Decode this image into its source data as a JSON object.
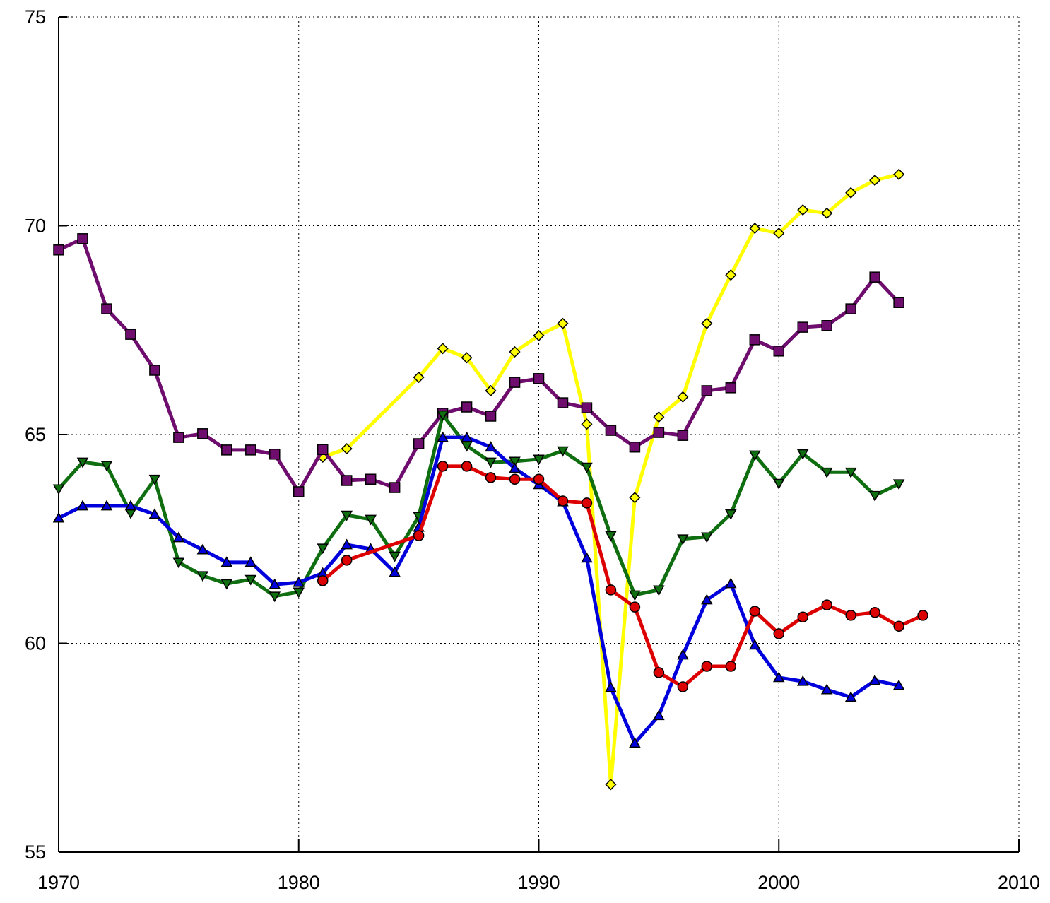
{
  "chart_data": {
    "type": "line",
    "grid": true,
    "xlim": [
      1970,
      2010
    ],
    "xticks": [
      1970,
      1980,
      1990,
      2000,
      2010
    ],
    "ylim": [
      55,
      75
    ],
    "yticks": [
      55,
      60,
      65,
      70,
      75
    ],
    "series": [
      {
        "color": "#ffff00",
        "marker": "diamond",
        "x": [
          1981,
          1982,
          1985,
          1986,
          1987,
          1988,
          1989,
          1990,
          1991,
          1992,
          1993,
          1994,
          1995,
          1996,
          1997,
          1998,
          1999,
          2000,
          2001,
          2002,
          2003,
          2004,
          2005
        ],
        "values": [
          64.46,
          64.66,
          66.37,
          67.06,
          66.84,
          66.05,
          66.98,
          67.37,
          67.66,
          65.25,
          56.62,
          63.49,
          65.42,
          65.9,
          67.66,
          68.82,
          69.94,
          69.82,
          70.38,
          70.3,
          70.79,
          71.09,
          71.23
        ]
      },
      {
        "color": "#6e0d6e",
        "marker": "square",
        "x": [
          1970,
          1971,
          1972,
          1973,
          1974,
          1975,
          1976,
          1977,
          1978,
          1979,
          1980,
          1981,
          1982,
          1983,
          1984,
          1985,
          1986,
          1987,
          1988,
          1989,
          1990,
          1991,
          1992,
          1993,
          1994,
          1995,
          1996,
          1997,
          1998,
          1999,
          2000,
          2001,
          2002,
          2003,
          2004,
          2005
        ],
        "values": [
          69.42,
          69.69,
          68.01,
          67.4,
          66.54,
          64.93,
          65.02,
          64.63,
          64.63,
          64.53,
          63.63,
          64.64,
          63.9,
          63.93,
          63.73,
          64.78,
          65.51,
          65.66,
          65.44,
          66.25,
          66.34,
          65.76,
          65.64,
          65.1,
          64.7,
          65.05,
          64.98,
          66.05,
          66.12,
          67.27,
          67.0,
          67.57,
          67.61,
          68.01,
          68.77,
          68.16
        ]
      },
      {
        "color": "#0f6e0f",
        "marker": "triangle-down",
        "x": [
          1970,
          1971,
          1972,
          1973,
          1974,
          1975,
          1976,
          1977,
          1978,
          1979,
          1980,
          1981,
          1982,
          1983,
          1984,
          1985,
          1986,
          1987,
          1988,
          1989,
          1990,
          1991,
          1992,
          1993,
          1994,
          1995,
          1996,
          1997,
          1998,
          1999,
          2000,
          2001,
          2002,
          2003,
          2004,
          2005
        ],
        "values": [
          63.7,
          64.34,
          64.26,
          63.12,
          63.93,
          61.94,
          61.62,
          61.43,
          61.53,
          61.13,
          61.23,
          62.28,
          63.07,
          62.97,
          62.09,
          63.04,
          65.47,
          64.73,
          64.34,
          64.36,
          64.41,
          64.61,
          64.22,
          62.58,
          61.16,
          61.28,
          62.5,
          62.55,
          63.1,
          64.51,
          63.83,
          64.54,
          64.1,
          64.1,
          63.54,
          63.82
        ]
      },
      {
        "color": "#0000dd",
        "marker": "triangle-up",
        "x": [
          1970,
          1971,
          1972,
          1973,
          1974,
          1975,
          1976,
          1977,
          1978,
          1979,
          1980,
          1981,
          1982,
          1983,
          1984,
          1985,
          1986,
          1987,
          1988,
          1989,
          1990,
          1991,
          1992,
          1993,
          1994,
          1995,
          1996,
          1997,
          1998,
          1999,
          2000,
          2001,
          2002,
          2003,
          2004,
          2005
        ],
        "values": [
          63.0,
          63.29,
          63.29,
          63.29,
          63.09,
          62.53,
          62.24,
          61.94,
          61.94,
          61.41,
          61.46,
          61.68,
          62.36,
          62.26,
          61.7,
          62.78,
          64.93,
          64.93,
          64.7,
          64.19,
          63.8,
          63.39,
          62.04,
          58.94,
          57.61,
          58.27,
          59.72,
          61.04,
          61.43,
          59.96,
          59.18,
          59.09,
          58.89,
          58.71,
          59.11,
          58.99
        ]
      },
      {
        "color": "#dd0000",
        "marker": "circle",
        "x": [
          1981,
          1982,
          1985,
          1986,
          1987,
          1988,
          1989,
          1990,
          1991,
          1992,
          1993,
          1994,
          1995,
          1996,
          1997,
          1998,
          1999,
          2000,
          2001,
          2002,
          2003,
          2004,
          2005,
          2006
        ],
        "values": [
          61.5,
          61.99,
          62.58,
          64.24,
          64.24,
          63.97,
          63.93,
          63.93,
          63.41,
          63.36,
          61.28,
          60.87,
          59.3,
          58.96,
          59.45,
          59.45,
          60.77,
          60.23,
          60.63,
          60.92,
          60.67,
          60.74,
          60.41,
          60.67
        ]
      }
    ]
  }
}
